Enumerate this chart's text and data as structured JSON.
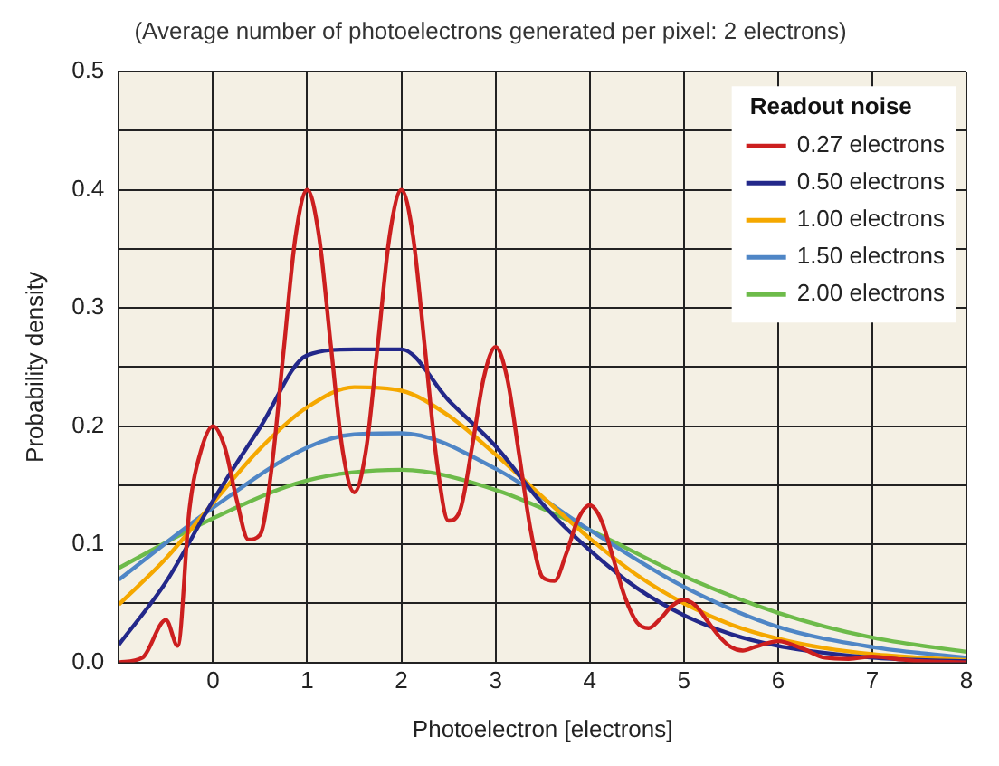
{
  "chart_data": {
    "type": "line",
    "title": "(Average number of photoelectrons generated per pixel: 2 electrons)",
    "xlabel": "Photoelectron [electrons]",
    "ylabel": "Probability density",
    "legend_title": "Readout noise",
    "legend": "top right",
    "grid": true,
    "marker": "none",
    "xlim": [
      -1,
      8
    ],
    "ylim": [
      0,
      0.5
    ],
    "xticks": [
      {
        "value": -1,
        "label": null
      },
      0,
      1,
      2,
      3,
      4,
      5,
      6,
      7,
      8
    ],
    "yticks": [
      {
        "value": 0,
        "label": "0.0"
      },
      {
        "value": 0.05,
        "label": null
      },
      0.1,
      {
        "value": 0.15,
        "label": null
      },
      0.2,
      {
        "value": 0.25,
        "label": null
      },
      0.3,
      {
        "value": 0.35,
        "label": null
      },
      0.4,
      {
        "value": 0.45,
        "label": null
      },
      0.5
    ],
    "series": [
      {
        "name": "0.27 electrons",
        "color": "#cc1f1f",
        "x": [
          -1,
          -0.75,
          -0.5,
          -0.375,
          -0.25,
          -0.125,
          0,
          0.125,
          0.25,
          0.375,
          0.5,
          0.625,
          0.75,
          0.875,
          1,
          1.125,
          1.25,
          1.375,
          1.5,
          1.625,
          1.75,
          1.875,
          2,
          2.125,
          2.25,
          2.375,
          2.5,
          2.625,
          2.75,
          2.875,
          3,
          3.125,
          3.25,
          3.375,
          3.5,
          3.625,
          3.75,
          3.875,
          4,
          4.125,
          4.25,
          4.375,
          4.5,
          4.625,
          4.75,
          4.875,
          5,
          5.125,
          5.25,
          5.375,
          5.5,
          5.625,
          5.75,
          5.875,
          6,
          6.25,
          6.5,
          6.75,
          7,
          7.25,
          7.5,
          8
        ],
        "values": [
          0,
          0.004,
          0.036,
          0.014,
          0.13,
          0.18,
          0.2,
          0.182,
          0.138,
          0.104,
          0.108,
          0.166,
          0.264,
          0.36,
          0.4,
          0.361,
          0.269,
          0.18,
          0.144,
          0.18,
          0.269,
          0.361,
          0.4,
          0.36,
          0.266,
          0.171,
          0.12,
          0.129,
          0.182,
          0.241,
          0.267,
          0.24,
          0.176,
          0.111,
          0.072,
          0.069,
          0.092,
          0.121,
          0.133,
          0.12,
          0.088,
          0.055,
          0.034,
          0.029,
          0.037,
          0.048,
          0.053,
          0.048,
          0.035,
          0.022,
          0.013,
          0.01,
          0.013,
          0.016,
          0.018,
          0.012,
          0.004,
          0.003,
          0.005,
          0.003,
          0.001,
          0
        ]
      },
      {
        "name": "0.50 electrons",
        "color": "#23288a",
        "x": [
          -1,
          -0.5,
          0,
          0.5,
          1,
          1.5,
          2,
          2.5,
          3,
          3.5,
          4,
          4.5,
          5,
          5.5,
          6,
          6.5,
          7,
          7.5,
          8
        ],
        "values": [
          0.015,
          0.068,
          0.137,
          0.199,
          0.26,
          0.265,
          0.265,
          0.222,
          0.183,
          0.134,
          0.095,
          0.063,
          0.04,
          0.024,
          0.014,
          0.008,
          0.004,
          0.002,
          0.001
        ]
      },
      {
        "name": "1.00 electrons",
        "color": "#f5a800",
        "x": [
          -1,
          -0.5,
          0,
          0.5,
          1,
          1.5,
          2,
          2.5,
          3,
          3.5,
          4,
          4.5,
          5,
          5.5,
          6,
          6.5,
          7,
          7.5,
          8
        ],
        "values": [
          0.049,
          0.088,
          0.135,
          0.181,
          0.216,
          0.233,
          0.23,
          0.209,
          0.176,
          0.14,
          0.105,
          0.074,
          0.05,
          0.032,
          0.02,
          0.012,
          0.007,
          0.004,
          0.002
        ]
      },
      {
        "name": "1.50 electrons",
        "color": "#4f86c6",
        "x": [
          -1,
          0,
          1,
          1.5,
          2,
          3,
          4,
          5,
          6,
          7,
          8
        ],
        "values": [
          0.07,
          0.131,
          0.182,
          0.193,
          0.194,
          0.164,
          0.112,
          0.064,
          0.03,
          0.013,
          0.004
        ]
      },
      {
        "name": "2.00 electrons",
        "color": "#6dbb4a",
        "x": [
          -1,
          0,
          1,
          2,
          3,
          4,
          5,
          6,
          7,
          8
        ],
        "values": [
          0.08,
          0.122,
          0.154,
          0.163,
          0.146,
          0.112,
          0.073,
          0.042,
          0.021,
          0.009
        ]
      }
    ]
  }
}
